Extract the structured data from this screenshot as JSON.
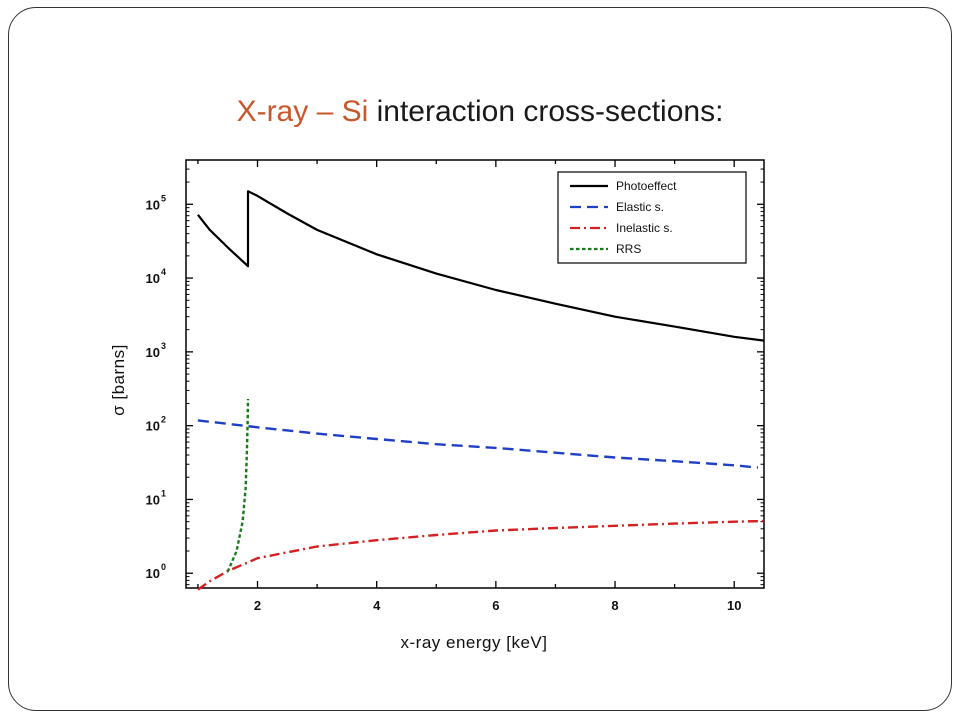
{
  "slide": {
    "title_part1": "X-ray – Si",
    "title_part2": " interaction cross-sections:"
  },
  "chart_data": {
    "type": "line",
    "xlabel": "x-ray energy [keV]",
    "ylabel": "σ [barns]",
    "xlim": [
      0.8,
      10.5
    ],
    "ylim": [
      -0.2,
      5.6
    ],
    "yscale": "log",
    "x_ticks": [
      2,
      4,
      6,
      8,
      10
    ],
    "x_ticks_labels": [
      "2",
      "4",
      "6",
      "8",
      "10"
    ],
    "y_ticks": [
      0,
      1,
      2,
      3,
      4,
      5
    ],
    "y_ticks_labels": [
      {
        "base": "10",
        "exp": "0"
      },
      {
        "base": "10",
        "exp": "1"
      },
      {
        "base": "10",
        "exp": "2"
      },
      {
        "base": "10",
        "exp": "3"
      },
      {
        "base": "10",
        "exp": "4"
      },
      {
        "base": "10",
        "exp": "5"
      }
    ],
    "legend_position": "top-right",
    "series": [
      {
        "name": "Photoeffect",
        "color": "#000000",
        "dash": "solid",
        "points": [
          [
            1.0,
            72000
          ],
          [
            1.2,
            45000
          ],
          [
            1.5,
            26000
          ],
          [
            1.84,
            14500
          ],
          [
            1.84,
            150000
          ],
          [
            2.0,
            130000
          ],
          [
            2.5,
            75000
          ],
          [
            3.0,
            45000
          ],
          [
            4.0,
            21000
          ],
          [
            5.0,
            11500
          ],
          [
            6.0,
            6900
          ],
          [
            7.0,
            4500
          ],
          [
            8.0,
            3000
          ],
          [
            9.0,
            2200
          ],
          [
            10.0,
            1600
          ],
          [
            10.5,
            1420
          ]
        ]
      },
      {
        "name": "Elastic s.",
        "color": "#1f3fc4",
        "dash": "dashed",
        "points": [
          [
            1.0,
            118
          ],
          [
            1.5,
            106
          ],
          [
            2.0,
            95
          ],
          [
            3.0,
            78
          ],
          [
            4.0,
            66
          ],
          [
            5.0,
            56
          ],
          [
            6.0,
            50
          ],
          [
            7.0,
            43
          ],
          [
            8.0,
            37
          ],
          [
            9.0,
            33
          ],
          [
            10.0,
            29
          ],
          [
            10.4,
            27
          ]
        ]
      },
      {
        "name": "Inelastic s.",
        "color": "#d42020",
        "dash": "dashdot",
        "points": [
          [
            1.0,
            0.6
          ],
          [
            1.2,
            0.78
          ],
          [
            1.5,
            1.07
          ],
          [
            2.0,
            1.6
          ],
          [
            3.0,
            2.3
          ],
          [
            4.0,
            2.8
          ],
          [
            5.0,
            3.3
          ],
          [
            6.0,
            3.8
          ],
          [
            7.0,
            4.1
          ],
          [
            8.0,
            4.4
          ],
          [
            9.0,
            4.7
          ],
          [
            10.0,
            5.0
          ],
          [
            10.5,
            5.1
          ]
        ]
      },
      {
        "name": "RRS",
        "color": "#1a7a1a",
        "dash": "dotted",
        "points": [
          [
            1.5,
            1.05
          ],
          [
            1.65,
            2.0
          ],
          [
            1.75,
            5.0
          ],
          [
            1.8,
            14
          ],
          [
            1.82,
            40
          ],
          [
            1.835,
            120
          ],
          [
            1.84,
            230
          ]
        ]
      }
    ]
  }
}
